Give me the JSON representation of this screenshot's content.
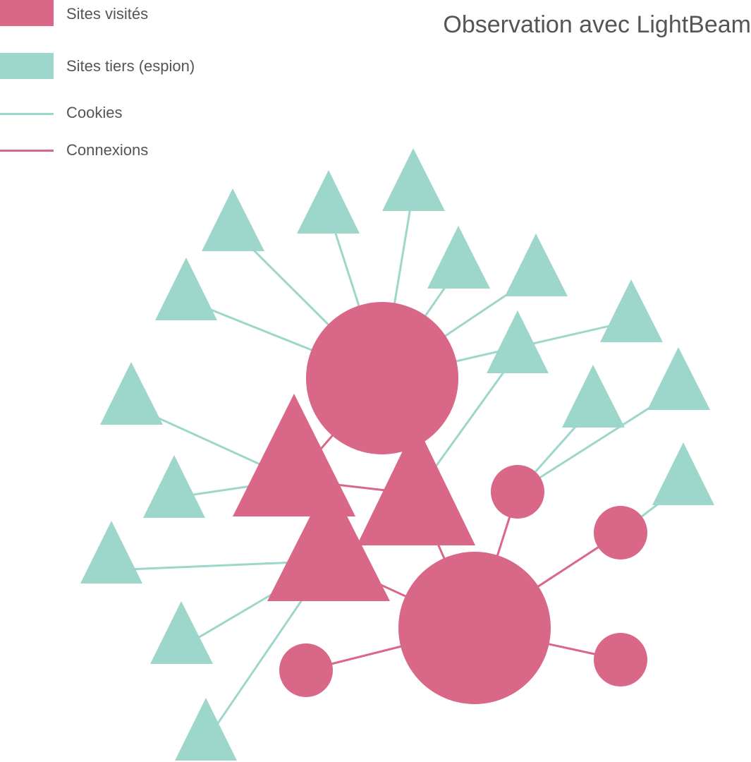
{
  "title": "Observation avec LightBeam",
  "colors": {
    "visited": "#d96787",
    "third_party": "#9dd6ca",
    "text": "#555555"
  },
  "legend": {
    "visited": "Sites visités",
    "third_party": "Sites tiers (espion)",
    "cookies": "Cookies",
    "connections": "Connexions"
  }
}
